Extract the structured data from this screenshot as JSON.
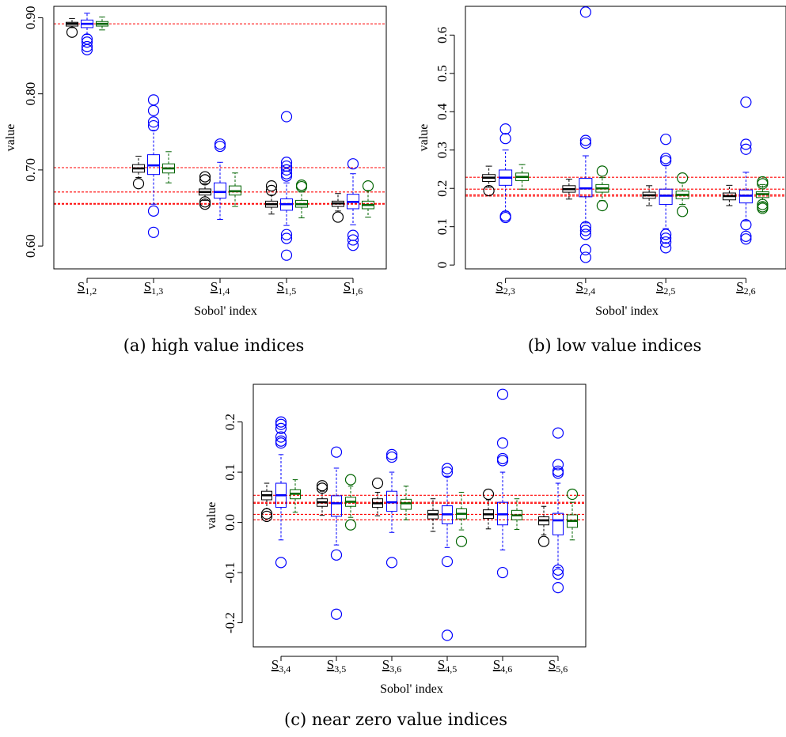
{
  "chart_data": [
    {
      "type": "boxplot",
      "caption": "(a) high value indices",
      "xlabel": "Sobol' index",
      "ylabel": "value",
      "ylim": [
        0.57,
        0.915
      ],
      "yticks": [
        "0.60",
        "0.70",
        "0.80",
        "0.90"
      ],
      "ytick_values": [
        0.6,
        0.7,
        0.8,
        0.9
      ],
      "reference_lines": [
        0.892,
        0.703,
        0.671,
        0.656,
        0.655
      ],
      "colors": {
        "method1": "#000000",
        "method2": "#0000ff",
        "method3": "#006400",
        "reference": "#ff0000"
      },
      "groups": [
        {
          "label": "S",
          "sub": "1,2",
          "boxes": [
            {
              "q1": 0.889,
              "median": 0.892,
              "q3": 0.894,
              "lw": 0.887,
              "uw": 0.899,
              "outliers": [
                0.881
              ]
            },
            {
              "q1": 0.887,
              "median": 0.892,
              "q3": 0.897,
              "lw": 0.878,
              "uw": 0.906,
              "outliers": [
                0.872,
                0.868,
                0.862,
                0.858
              ]
            },
            {
              "q1": 0.889,
              "median": 0.892,
              "q3": 0.895,
              "lw": 0.884,
              "uw": 0.901,
              "outliers": []
            }
          ]
        },
        {
          "label": "S",
          "sub": "1,3",
          "boxes": [
            {
              "q1": 0.697,
              "median": 0.702,
              "q3": 0.707,
              "lw": 0.69,
              "uw": 0.718,
              "outliers": [
                0.682
              ]
            },
            {
              "q1": 0.694,
              "median": 0.706,
              "q3": 0.72,
              "lw": 0.655,
              "uw": 0.752,
              "outliers": [
                0.792,
                0.778,
                0.763,
                0.758,
                0.646,
                0.618
              ]
            },
            {
              "q1": 0.696,
              "median": 0.702,
              "q3": 0.708,
              "lw": 0.683,
              "uw": 0.724,
              "outliers": []
            }
          ]
        },
        {
          "label": "S",
          "sub": "1,4",
          "boxes": [
            {
              "q1": 0.667,
              "median": 0.671,
              "q3": 0.675,
              "lw": 0.66,
              "uw": 0.682,
              "outliers": [
                0.691,
                0.687,
                0.658,
                0.655
              ]
            },
            {
              "q1": 0.663,
              "median": 0.671,
              "q3": 0.683,
              "lw": 0.635,
              "uw": 0.71,
              "outliers": [
                0.734,
                0.731
              ]
            },
            {
              "q1": 0.667,
              "median": 0.672,
              "q3": 0.679,
              "lw": 0.652,
              "uw": 0.696,
              "outliers": []
            }
          ]
        },
        {
          "label": "S",
          "sub": "1,5",
          "boxes": [
            {
              "q1": 0.651,
              "median": 0.655,
              "q3": 0.659,
              "lw": 0.642,
              "uw": 0.667,
              "outliers": [
                0.679,
                0.673
              ]
            },
            {
              "q1": 0.647,
              "median": 0.655,
              "q3": 0.662,
              "lw": 0.627,
              "uw": 0.683,
              "outliers": [
                0.77,
                0.71,
                0.705,
                0.7,
                0.695,
                0.692,
                0.615,
                0.61,
                0.588
              ]
            },
            {
              "q1": 0.651,
              "median": 0.655,
              "q3": 0.66,
              "lw": 0.637,
              "uw": 0.671,
              "outliers": [
                0.68,
                0.678
              ]
            }
          ]
        },
        {
          "label": "S",
          "sub": "1,6",
          "boxes": [
            {
              "q1": 0.652,
              "median": 0.656,
              "q3": 0.659,
              "lw": 0.646,
              "uw": 0.669,
              "outliers": [
                0.638
              ]
            },
            {
              "q1": 0.649,
              "median": 0.658,
              "q3": 0.668,
              "lw": 0.628,
              "uw": 0.695,
              "outliers": [
                0.708,
                0.614,
                0.608,
                0.601
              ]
            },
            {
              "q1": 0.649,
              "median": 0.654,
              "q3": 0.659,
              "lw": 0.638,
              "uw": 0.673,
              "outliers": [
                0.679
              ]
            }
          ]
        }
      ]
    },
    {
      "type": "boxplot",
      "caption": "(b) low value indices",
      "xlabel": "Sobol' index",
      "ylabel": "value",
      "ylim": [
        -0.01,
        0.675
      ],
      "yticks": [
        "0",
        "0.1",
        "0.2",
        "0.3",
        "0.4",
        "0.5",
        "0.6"
      ],
      "ytick_values": [
        0,
        0.1,
        0.2,
        0.3,
        0.4,
        0.5,
        0.6
      ],
      "reference_lines": [
        0.229,
        0.198,
        0.183,
        0.18
      ],
      "colors": {
        "method1": "#000000",
        "method2": "#0000ff",
        "method3": "#006400",
        "reference": "#ff0000"
      },
      "groups": [
        {
          "label": "S",
          "sub": "2,3",
          "boxes": [
            {
              "q1": 0.218,
              "median": 0.228,
              "q3": 0.236,
              "lw": 0.203,
              "uw": 0.258,
              "outliers": [
                0.194
              ]
            },
            {
              "q1": 0.208,
              "median": 0.228,
              "q3": 0.248,
              "lw": 0.14,
              "uw": 0.3,
              "outliers": [
                0.355,
                0.33,
                0.128,
                0.124
              ]
            },
            {
              "q1": 0.22,
              "median": 0.23,
              "q3": 0.24,
              "lw": 0.198,
              "uw": 0.262,
              "outliers": []
            }
          ]
        },
        {
          "label": "S",
          "sub": "2,4",
          "boxes": [
            {
              "q1": 0.19,
              "median": 0.198,
              "q3": 0.207,
              "lw": 0.172,
              "uw": 0.224,
              "outliers": []
            },
            {
              "q1": 0.178,
              "median": 0.2,
              "q3": 0.226,
              "lw": 0.11,
              "uw": 0.285,
              "outliers": [
                0.66,
                0.325,
                0.318,
                0.1,
                0.09,
                0.08,
                0.04,
                0.02
              ]
            },
            {
              "q1": 0.19,
              "median": 0.2,
              "q3": 0.21,
              "lw": 0.168,
              "uw": 0.228,
              "outliers": [
                0.245,
                0.155
              ]
            }
          ]
        },
        {
          "label": "S",
          "sub": "2,5",
          "boxes": [
            {
              "q1": 0.174,
              "median": 0.182,
              "q3": 0.19,
              "lw": 0.155,
              "uw": 0.207,
              "outliers": []
            },
            {
              "q1": 0.158,
              "median": 0.181,
              "q3": 0.198,
              "lw": 0.095,
              "uw": 0.26,
              "outliers": [
                0.328,
                0.278,
                0.272,
                0.08,
                0.07,
                0.06,
                0.045
              ]
            },
            {
              "q1": 0.173,
              "median": 0.183,
              "q3": 0.193,
              "lw": 0.158,
              "uw": 0.215,
              "outliers": [
                0.227,
                0.14
              ]
            }
          ]
        },
        {
          "label": "S",
          "sub": "2,6",
          "boxes": [
            {
              "q1": 0.17,
              "median": 0.18,
              "q3": 0.188,
              "lw": 0.155,
              "uw": 0.208,
              "outliers": []
            },
            {
              "q1": 0.162,
              "median": 0.181,
              "q3": 0.196,
              "lw": 0.115,
              "uw": 0.242,
              "outliers": [
                0.425,
                0.315,
                0.302,
                0.105,
                0.075,
                0.068
              ]
            },
            {
              "q1": 0.176,
              "median": 0.185,
              "q3": 0.191,
              "lw": 0.164,
              "uw": 0.21,
              "outliers": [
                0.217,
                0.212,
                0.158,
                0.152,
                0.148
              ]
            }
          ]
        }
      ]
    },
    {
      "type": "boxplot",
      "caption": "(c) near zero value indices",
      "xlabel": "Sobol' index",
      "ylabel": "value",
      "ylim": [
        -0.248,
        0.275
      ],
      "yticks": [
        "-0.2",
        "-0.1",
        "0.0",
        "0.1",
        "0.2"
      ],
      "ytick_values": [
        -0.2,
        -0.1,
        0.0,
        0.1,
        0.2
      ],
      "reference_lines": [
        0.054,
        0.04,
        0.038,
        0.016,
        0.005
      ],
      "colors": {
        "method1": "#000000",
        "method2": "#0000ff",
        "method3": "#006400",
        "reference": "#ff0000"
      },
      "groups": [
        {
          "label": "S",
          "sub": "3,4",
          "boxes": [
            {
              "q1": 0.045,
              "median": 0.054,
              "q3": 0.062,
              "lw": 0.027,
              "uw": 0.078,
              "outliers": [
                0.017,
                0.012
              ]
            },
            {
              "q1": 0.03,
              "median": 0.054,
              "q3": 0.078,
              "lw": -0.035,
              "uw": 0.135,
              "outliers": [
                0.2,
                0.195,
                0.187,
                0.17,
                0.162,
                0.158,
                -0.08
              ]
            },
            {
              "q1": 0.047,
              "median": 0.057,
              "q3": 0.065,
              "lw": 0.02,
              "uw": 0.085,
              "outliers": []
            }
          ]
        },
        {
          "label": "S",
          "sub": "3,5",
          "boxes": [
            {
              "q1": 0.032,
              "median": 0.04,
              "q3": 0.047,
              "lw": 0.014,
              "uw": 0.062,
              "outliers": [
                0.073,
                0.068
              ]
            },
            {
              "q1": 0.012,
              "median": 0.038,
              "q3": 0.053,
              "lw": -0.045,
              "uw": 0.108,
              "outliers": [
                0.14,
                -0.065,
                -0.183
              ]
            },
            {
              "q1": 0.032,
              "median": 0.041,
              "q3": 0.05,
              "lw": 0.01,
              "uw": 0.072,
              "outliers": [
                0.085,
                -0.005
              ]
            }
          ]
        },
        {
          "label": "S",
          "sub": "3,6",
          "boxes": [
            {
              "q1": 0.03,
              "median": 0.038,
              "q3": 0.047,
              "lw": 0.013,
              "uw": 0.06,
              "outliers": [
                0.078
              ]
            },
            {
              "q1": 0.022,
              "median": 0.04,
              "q3": 0.062,
              "lw": -0.02,
              "uw": 0.1,
              "outliers": [
                0.135,
                0.13,
                -0.08
              ]
            },
            {
              "q1": 0.026,
              "median": 0.038,
              "q3": 0.046,
              "lw": 0.005,
              "uw": 0.072,
              "outliers": []
            }
          ]
        },
        {
          "label": "S",
          "sub": "4,5",
          "boxes": [
            {
              "q1": 0.007,
              "median": 0.016,
              "q3": 0.024,
              "lw": -0.018,
              "uw": 0.047,
              "outliers": []
            },
            {
              "q1": -0.003,
              "median": 0.016,
              "q3": 0.033,
              "lw": -0.05,
              "uw": 0.092,
              "outliers": [
                0.107,
                0.1,
                -0.078,
                -0.225
              ]
            },
            {
              "q1": 0.007,
              "median": 0.017,
              "q3": 0.027,
              "lw": -0.015,
              "uw": 0.06,
              "outliers": [
                -0.038
              ]
            }
          ]
        },
        {
          "label": "S",
          "sub": "4,6",
          "boxes": [
            {
              "q1": 0.008,
              "median": 0.016,
              "q3": 0.025,
              "lw": -0.013,
              "uw": 0.045,
              "outliers": [
                0.056
              ]
            },
            {
              "q1": -0.005,
              "median": 0.016,
              "q3": 0.04,
              "lw": -0.055,
              "uw": 0.1,
              "outliers": [
                0.255,
                0.158,
                0.127,
                0.123,
                -0.1
              ]
            },
            {
              "q1": 0.005,
              "median": 0.014,
              "q3": 0.024,
              "lw": -0.014,
              "uw": 0.047,
              "outliers": []
            }
          ]
        },
        {
          "label": "S",
          "sub": "5,6",
          "boxes": [
            {
              "q1": -0.005,
              "median": 0.004,
              "q3": 0.011,
              "lw": -0.025,
              "uw": 0.032,
              "outliers": [
                -0.038
              ]
            },
            {
              "q1": -0.025,
              "median": 0.004,
              "q3": 0.018,
              "lw": -0.09,
              "uw": 0.078,
              "outliers": [
                0.178,
                0.115,
                0.102,
                0.098,
                -0.095,
                -0.103,
                -0.13
              ]
            },
            {
              "q1": -0.01,
              "median": 0.003,
              "q3": 0.015,
              "lw": -0.035,
              "uw": 0.04,
              "outliers": [
                0.056
              ]
            }
          ]
        }
      ]
    }
  ]
}
